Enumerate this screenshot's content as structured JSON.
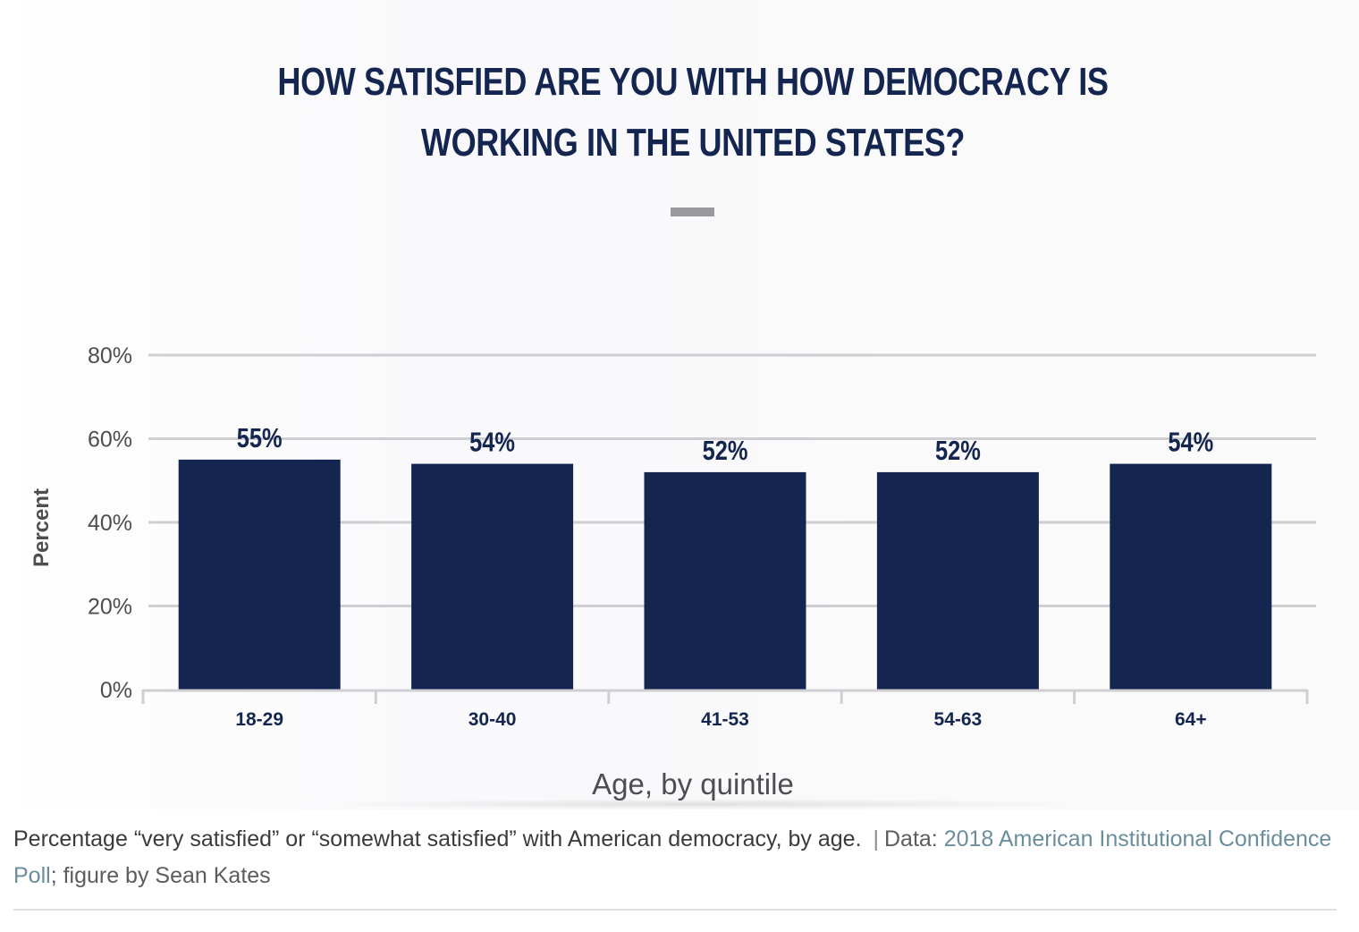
{
  "figure": {
    "title_line1": "HOW SATISFIED ARE YOU WITH HOW DEMOCRACY IS",
    "title_line2": "WORKING IN THE UNITED STATES?"
  },
  "chart_data": {
    "type": "bar",
    "title": "HOW SATISFIED ARE YOU WITH HOW DEMOCRACY IS WORKING IN THE UNITED STATES?",
    "categories": [
      "18-29",
      "30-40",
      "41-53",
      "54-63",
      "64+"
    ],
    "values": [
      55,
      54,
      52,
      52,
      54
    ],
    "data_labels": [
      "55%",
      "54%",
      "52%",
      "52%",
      "54%"
    ],
    "xlabel": "Age, by quintile",
    "ylabel": "Percent",
    "ylim": [
      0,
      80
    ],
    "yticks": [
      0,
      20,
      40,
      60,
      80
    ],
    "ytick_labels": [
      "0%",
      "20%",
      "40%",
      "60%",
      "80%"
    ],
    "grid": true,
    "bar_color": "#14264f",
    "grid_color": "#cfcfd3"
  },
  "caption": {
    "description": "Percentage “very satisfied” or “somewhat satisfied” with American democracy, by age.",
    "separator": "|",
    "data_prefix": "Data: ",
    "source_link": "2018 American Institutional Confidence Poll",
    "credit": "; figure by Sean Kates"
  }
}
